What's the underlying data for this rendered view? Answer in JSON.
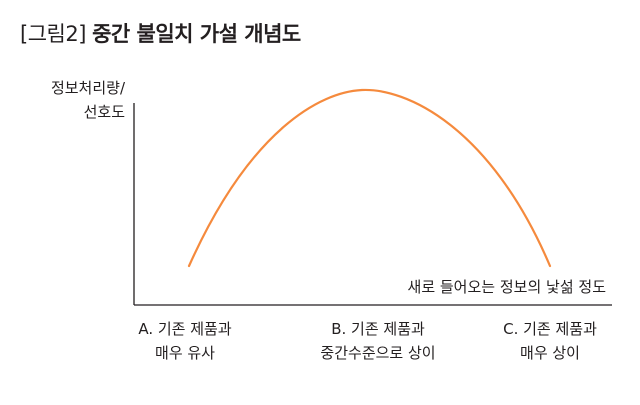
{
  "title": {
    "tag": "[그림2]",
    "main": "중간 불일치 가설 개념도"
  },
  "y_axis": {
    "line1": "정보처리량/",
    "line2": "선호도"
  },
  "x_axis": {
    "label": "새로 들어오는 정보의 낯섦 정도"
  },
  "ticks": [
    {
      "line1": "A. 기존 제품과",
      "line2": "매우 유사"
    },
    {
      "line1": "B. 기존 제품과",
      "line2": "중간수준으로 상이"
    },
    {
      "line1": "C. 기존 제품과",
      "line2": "매우 상이"
    }
  ],
  "colors": {
    "curve": "#f58a3d",
    "axis": "#231f20",
    "text": "#231f20"
  },
  "chart_data": {
    "type": "line",
    "shape": "inverted-U",
    "x_categories": [
      "A",
      "B",
      "C"
    ],
    "y_relative": [
      0.08,
      1.0,
      0.1
    ],
    "peak_position": "B"
  }
}
